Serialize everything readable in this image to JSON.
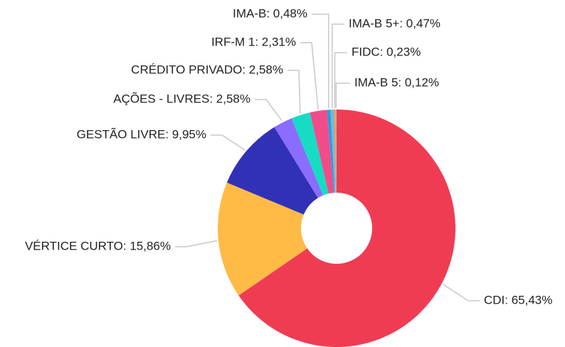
{
  "chart_data": {
    "type": "donut",
    "values": [
      65.43,
      15.86,
      9.95,
      2.58,
      2.58,
      2.31,
      0.48,
      0.47,
      0.23,
      0.12
    ],
    "value_labels": [
      "CDI: 65,43%",
      "VÉRTICE CURTO: 15,86%",
      "GESTÃO LIVRE: 9,95%",
      "AÇÕES - LIVRES: 2,58%",
      "CRÉDITO PRIVADO: 2,58%",
      "IRF-M 1: 2,31%",
      "IMA-B: 0,48%",
      "IMA-B 5+: 0,47%",
      "FIDC: 0,23%",
      "IMA-B 5: 0,12%"
    ],
    "colors": [
      "#ef3c53",
      "#ffbb46",
      "#3131b7",
      "#8a6cff",
      "#16dcc4",
      "#f24b8a",
      "#2e9bd6",
      "#6fb7e8",
      "#f39c34",
      "#aab2bd"
    ]
  }
}
